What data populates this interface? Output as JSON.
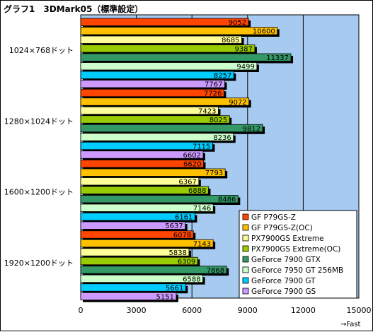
{
  "chart_data": {
    "type": "bar",
    "orientation": "horizontal",
    "title": "グラフ1　3DMark05（標準設定）",
    "xlabel": "→Fast",
    "xlim": [
      0,
      15000
    ],
    "xticks": [
      0,
      3000,
      6000,
      9000,
      12000,
      15000
    ],
    "grid": "vertical",
    "plot_background": "#a6caf0",
    "legend_position": "bottom-right",
    "categories": [
      "1024×768ドット",
      "1280×1024ドット",
      "1600×1200ドット",
      "1920×1200ドット"
    ],
    "series": [
      {
        "name": "GF P79GS-Z",
        "color": "#ff4500",
        "values": [
          9052,
          7726,
          6620,
          6078
        ]
      },
      {
        "name": "GF P79GS-Z(OC)",
        "color": "#ffc000",
        "values": [
          10600,
          9072,
          7793,
          7143
        ]
      },
      {
        "name": "PX7900GS Extreme",
        "color": "#ffff99",
        "values": [
          8685,
          7423,
          6367,
          5838
        ]
      },
      {
        "name": "PX7900GS Extreme(OC)",
        "color": "#99cc00",
        "values": [
          9387,
          8025,
          6888,
          6309
        ]
      },
      {
        "name": "GeForce 7900 GTX",
        "color": "#339966",
        "values": [
          11337,
          9812,
          8486,
          7868
        ]
      },
      {
        "name": "GeForce 7950 GT 256MB",
        "color": "#ccffcc",
        "values": [
          9499,
          8236,
          7146,
          6588
        ]
      },
      {
        "name": "GeForce 7900 GT",
        "color": "#00ccff",
        "values": [
          8257,
          7115,
          6161,
          5661
        ]
      },
      {
        "name": "GeForce 7900 GS",
        "color": "#cc99ff",
        "values": [
          7767,
          6602,
          5637,
          5151
        ]
      }
    ]
  }
}
